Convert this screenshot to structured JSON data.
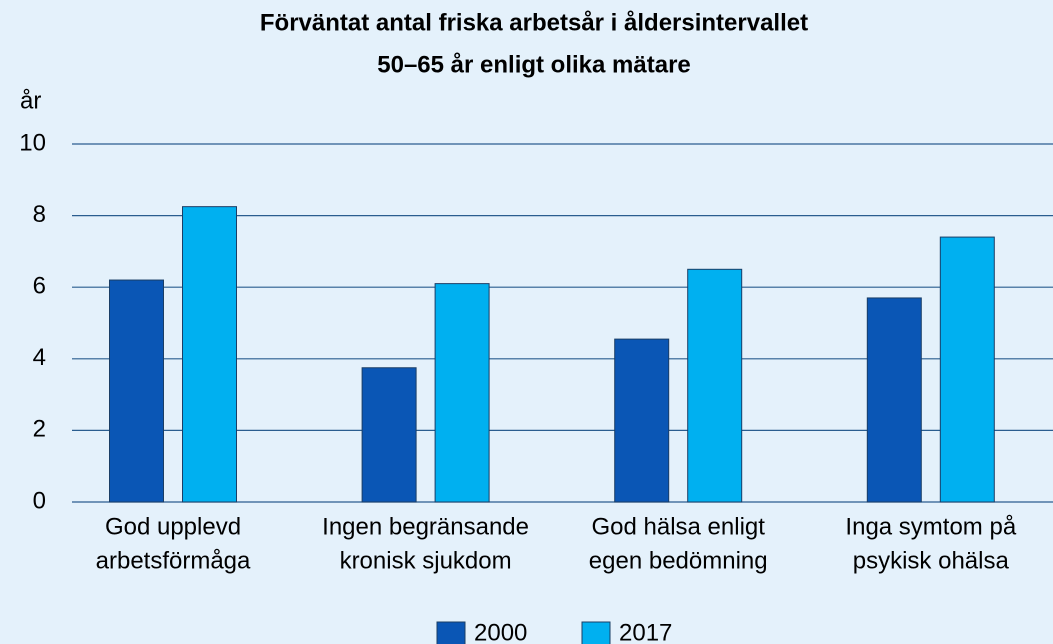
{
  "chart_data": {
    "type": "bar",
    "title": [
      "Förväntat antal friska arbetsår i åldersintervallet",
      "50–65 år enligt olika mätare"
    ],
    "y_label": "år",
    "categories": [
      [
        "God upplevd",
        "arbetsförmåga"
      ],
      [
        "Ingen begränsande",
        "kronisk sjukdom"
      ],
      [
        "God hälsa enligt",
        "egen bedömning"
      ],
      [
        "Inga symtom på",
        "psykisk ohälsa"
      ]
    ],
    "series": [
      {
        "name": "2000",
        "color": "#0a56b5",
        "values": [
          6.2,
          3.75,
          4.55,
          5.7
        ]
      },
      {
        "name": "2017",
        "color": "#00b0f0",
        "values": [
          8.25,
          6.1,
          6.5,
          7.4
        ]
      }
    ],
    "ylim": [
      0,
      10
    ],
    "yticks": [
      0,
      2,
      4,
      6,
      8,
      10
    ],
    "grid": true,
    "legend": "bottom"
  }
}
